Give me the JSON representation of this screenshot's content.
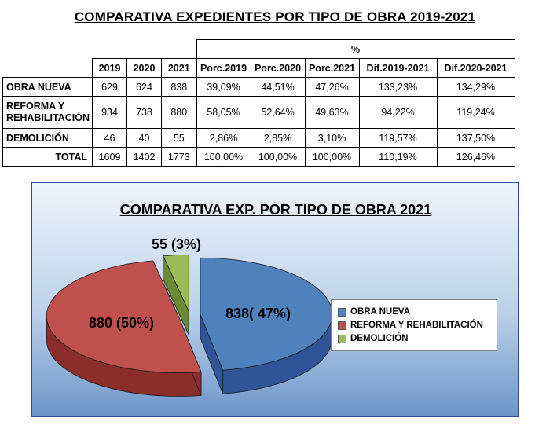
{
  "page": {
    "title": "COMPARATIVA EXPEDIENTES POR TIPO DE OBRA 2019-2021"
  },
  "table": {
    "percent_group": "%",
    "headers": [
      "2019",
      "2020",
      "2021",
      "Porc.2019",
      "Porc.2020",
      "Porc.2021",
      "Dif.2019-2021",
      "Dif.2020-2021"
    ],
    "rows": [
      {
        "label": "OBRA NUEVA",
        "cells": [
          "629",
          "624",
          "838",
          "39,09%",
          "44,51%",
          "47,26%",
          "133,23%",
          "134,29%"
        ]
      },
      {
        "label_line1": "REFORMA Y",
        "label_line2": "REHABILITACIÓN",
        "cells": [
          "934",
          "738",
          "880",
          "58,05%",
          "52,64%",
          "49,63%",
          "94,22%",
          "119,24%"
        ]
      },
      {
        "label": "DEMOLICIÓN",
        "cells": [
          "46",
          "40",
          "55",
          "2,86%",
          "2,85%",
          "3,10%",
          "119,57%",
          "137,50%"
        ]
      }
    ],
    "total": {
      "label": "TOTAL",
      "cells": [
        "1609",
        "1402",
        "1773",
        "100,00%",
        "100,00%",
        "100,00%",
        "110,19%",
        "126,46%"
      ]
    }
  },
  "chart_data": {
    "type": "pie",
    "title": "COMPARATIVA EXP. POR TIPO DE OBRA 2021",
    "slices": [
      {
        "name": "OBRA NUEVA",
        "value": 838,
        "label": "838( 47%)",
        "color": "#4f81bd",
        "side_color": "#2f5597"
      },
      {
        "name": "REFORMA Y REHABILITACIÓN",
        "value": 880,
        "label": "880 (50%)",
        "color": "#c0504d",
        "side_color": "#8b2d2b"
      },
      {
        "name": "DEMOLICIÓN",
        "value": 55,
        "label": "55 (3%)",
        "color": "#9bbb59",
        "side_color": "#6b8a34"
      }
    ],
    "legend_placement": "right",
    "exploded": true,
    "three_d": true
  }
}
